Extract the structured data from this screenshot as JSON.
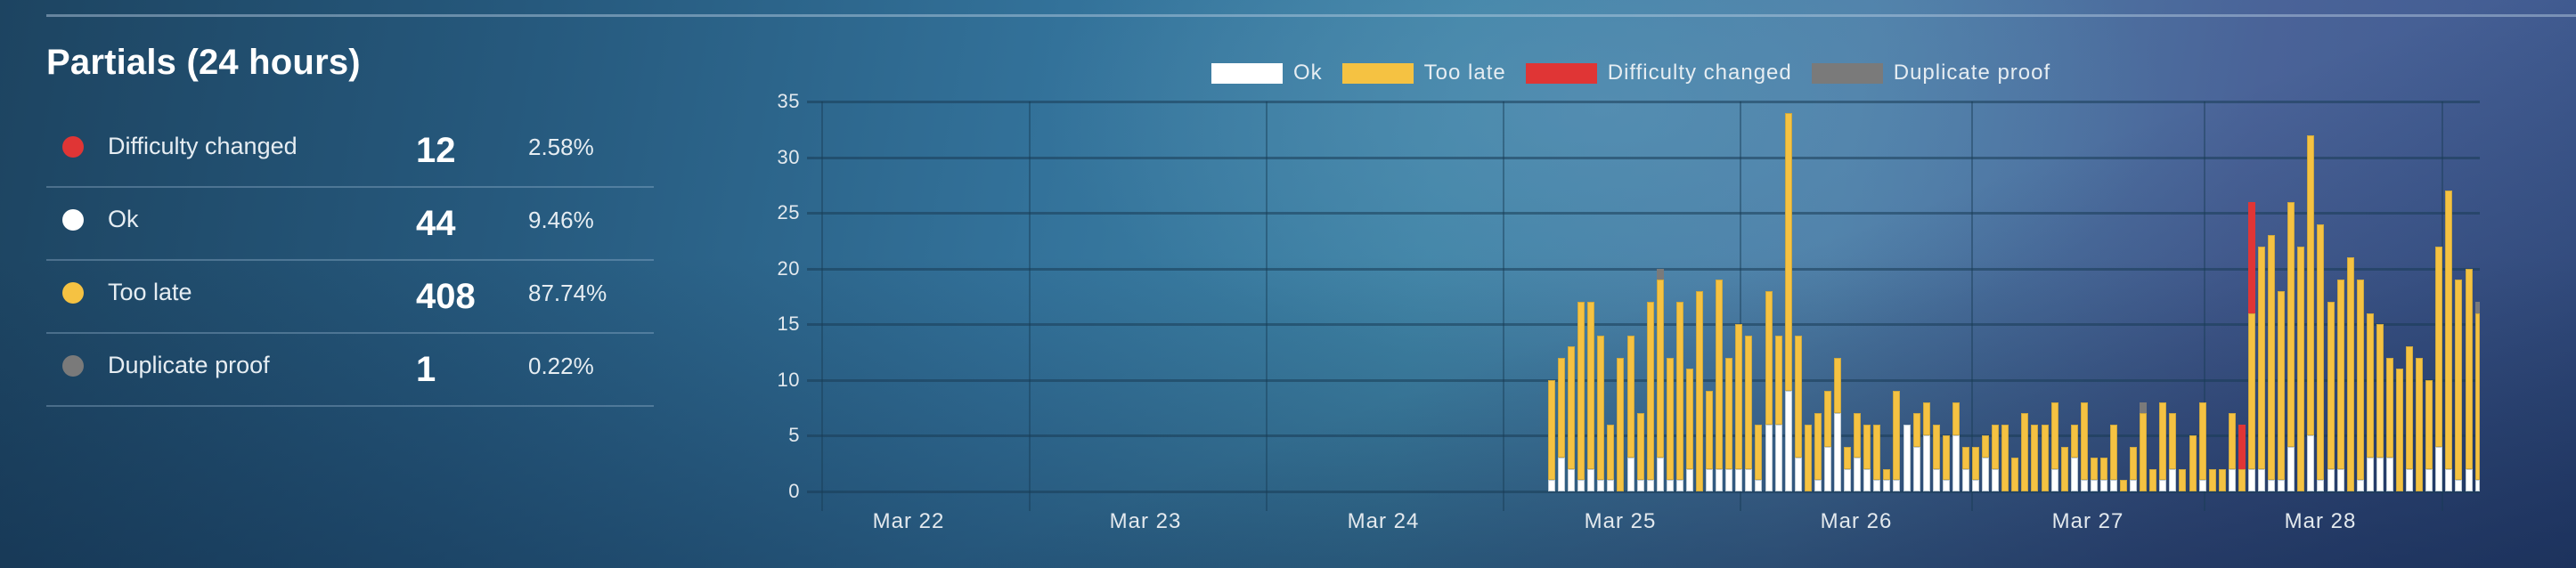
{
  "panel": {
    "title": "Partials (24 hours)",
    "rows": [
      {
        "label": "Difficulty changed",
        "count": "12",
        "percent": "2.58%",
        "color": "#e03535"
      },
      {
        "label": "Ok",
        "count": "44",
        "percent": "9.46%",
        "color": "#ffffff"
      },
      {
        "label": "Too late",
        "count": "408",
        "percent": "87.74%",
        "color": "#f5c242"
      },
      {
        "label": "Duplicate proof",
        "count": "1",
        "percent": "0.22%",
        "color": "#7a7a7a"
      }
    ]
  },
  "chart_data": {
    "type": "bar",
    "stacked": true,
    "title": "",
    "xlabel": "",
    "ylabel": "",
    "ylim": [
      0,
      35
    ],
    "yticks": [
      0,
      5,
      10,
      15,
      20,
      25,
      30,
      35
    ],
    "xticks": [
      "Mar 22",
      "Mar 23",
      "Mar 24",
      "Mar 25",
      "Mar 26",
      "Mar 27",
      "Mar 28"
    ],
    "grid": true,
    "legend_position": "top",
    "legend": [
      {
        "name": "Ok",
        "color": "#ffffff"
      },
      {
        "name": "Too late",
        "color": "#f5c242"
      },
      {
        "name": "Difficulty changed",
        "color": "#e03535"
      },
      {
        "name": "Duplicate proof",
        "color": "#7a7a7a"
      }
    ],
    "bar_interval": "hourly (approx.), starting late Mar 24",
    "series": [
      {
        "name": "Ok",
        "color": "#ffffff",
        "values": [
          1,
          3,
          2,
          1,
          2,
          1,
          1,
          0,
          3,
          1,
          1,
          3,
          1,
          1,
          2,
          0,
          2,
          2,
          2,
          2,
          2,
          1,
          6,
          6,
          9,
          3,
          0,
          1,
          4,
          7,
          2,
          3,
          2,
          1,
          1,
          1,
          6,
          4,
          5,
          2,
          1,
          5,
          2,
          1,
          3,
          2,
          0,
          0,
          0,
          0,
          0,
          2,
          0,
          3,
          1,
          1,
          1,
          1,
          0,
          1,
          0,
          0,
          1,
          2,
          0,
          0,
          1,
          0,
          0,
          2,
          0,
          2,
          2,
          1,
          1,
          4,
          0,
          5,
          1,
          2,
          2,
          0,
          1,
          3,
          3,
          3,
          0,
          2,
          0,
          2,
          4,
          2,
          1,
          2,
          1
        ]
      },
      {
        "name": "Too late",
        "color": "#f5c242",
        "values": [
          9,
          9,
          11,
          16,
          15,
          13,
          5,
          12,
          11,
          6,
          16,
          16,
          11,
          16,
          9,
          18,
          7,
          17,
          10,
          13,
          12,
          5,
          12,
          8,
          25,
          11,
          6,
          6,
          5,
          5,
          2,
          4,
          4,
          5,
          1,
          8,
          0,
          3,
          3,
          4,
          4,
          3,
          2,
          3,
          2,
          4,
          6,
          3,
          7,
          6,
          6,
          6,
          4,
          3,
          7,
          2,
          2,
          5,
          1,
          3,
          7,
          2,
          7,
          5,
          2,
          5,
          7,
          2,
          2,
          5,
          2,
          14,
          20,
          22,
          17,
          22,
          22,
          27,
          23,
          15,
          17,
          21,
          18,
          13,
          12,
          9,
          11,
          11,
          12,
          8,
          18,
          25,
          18,
          18,
          15
        ]
      },
      {
        "name": "Difficulty changed",
        "color": "#e03535",
        "values": [
          0,
          0,
          0,
          0,
          0,
          0,
          0,
          0,
          0,
          0,
          0,
          0,
          0,
          0,
          0,
          0,
          0,
          0,
          0,
          0,
          0,
          0,
          0,
          0,
          0,
          0,
          0,
          0,
          0,
          0,
          0,
          0,
          0,
          0,
          0,
          0,
          0,
          0,
          0,
          0,
          0,
          0,
          0,
          0,
          0,
          0,
          0,
          0,
          0,
          0,
          0,
          0,
          0,
          0,
          0,
          0,
          0,
          0,
          0,
          0,
          0,
          0,
          0,
          0,
          0,
          0,
          0,
          0,
          0,
          0,
          4,
          10,
          0,
          0,
          0,
          0,
          0,
          0,
          0,
          0,
          0,
          0,
          0,
          0,
          0,
          0,
          0,
          0,
          0,
          0,
          0,
          0,
          0,
          0,
          0
        ]
      },
      {
        "name": "Duplicate proof",
        "color": "#7a7a7a",
        "values": [
          0,
          0,
          0,
          0,
          0,
          0,
          0,
          0,
          0,
          0,
          0,
          1,
          0,
          0,
          0,
          0,
          0,
          0,
          0,
          0,
          0,
          0,
          0,
          0,
          0,
          0,
          0,
          0,
          0,
          0,
          0,
          0,
          0,
          0,
          0,
          0,
          0,
          0,
          0,
          0,
          0,
          0,
          0,
          0,
          0,
          0,
          0,
          0,
          0,
          0,
          0,
          0,
          0,
          0,
          0,
          0,
          0,
          0,
          0,
          0,
          1,
          0,
          0,
          0,
          0,
          0,
          0,
          0,
          0,
          0,
          0,
          0,
          0,
          0,
          0,
          0,
          0,
          0,
          0,
          0,
          0,
          0,
          0,
          0,
          0,
          0,
          0,
          0,
          0,
          0,
          0,
          0,
          0,
          0,
          1
        ]
      }
    ]
  }
}
